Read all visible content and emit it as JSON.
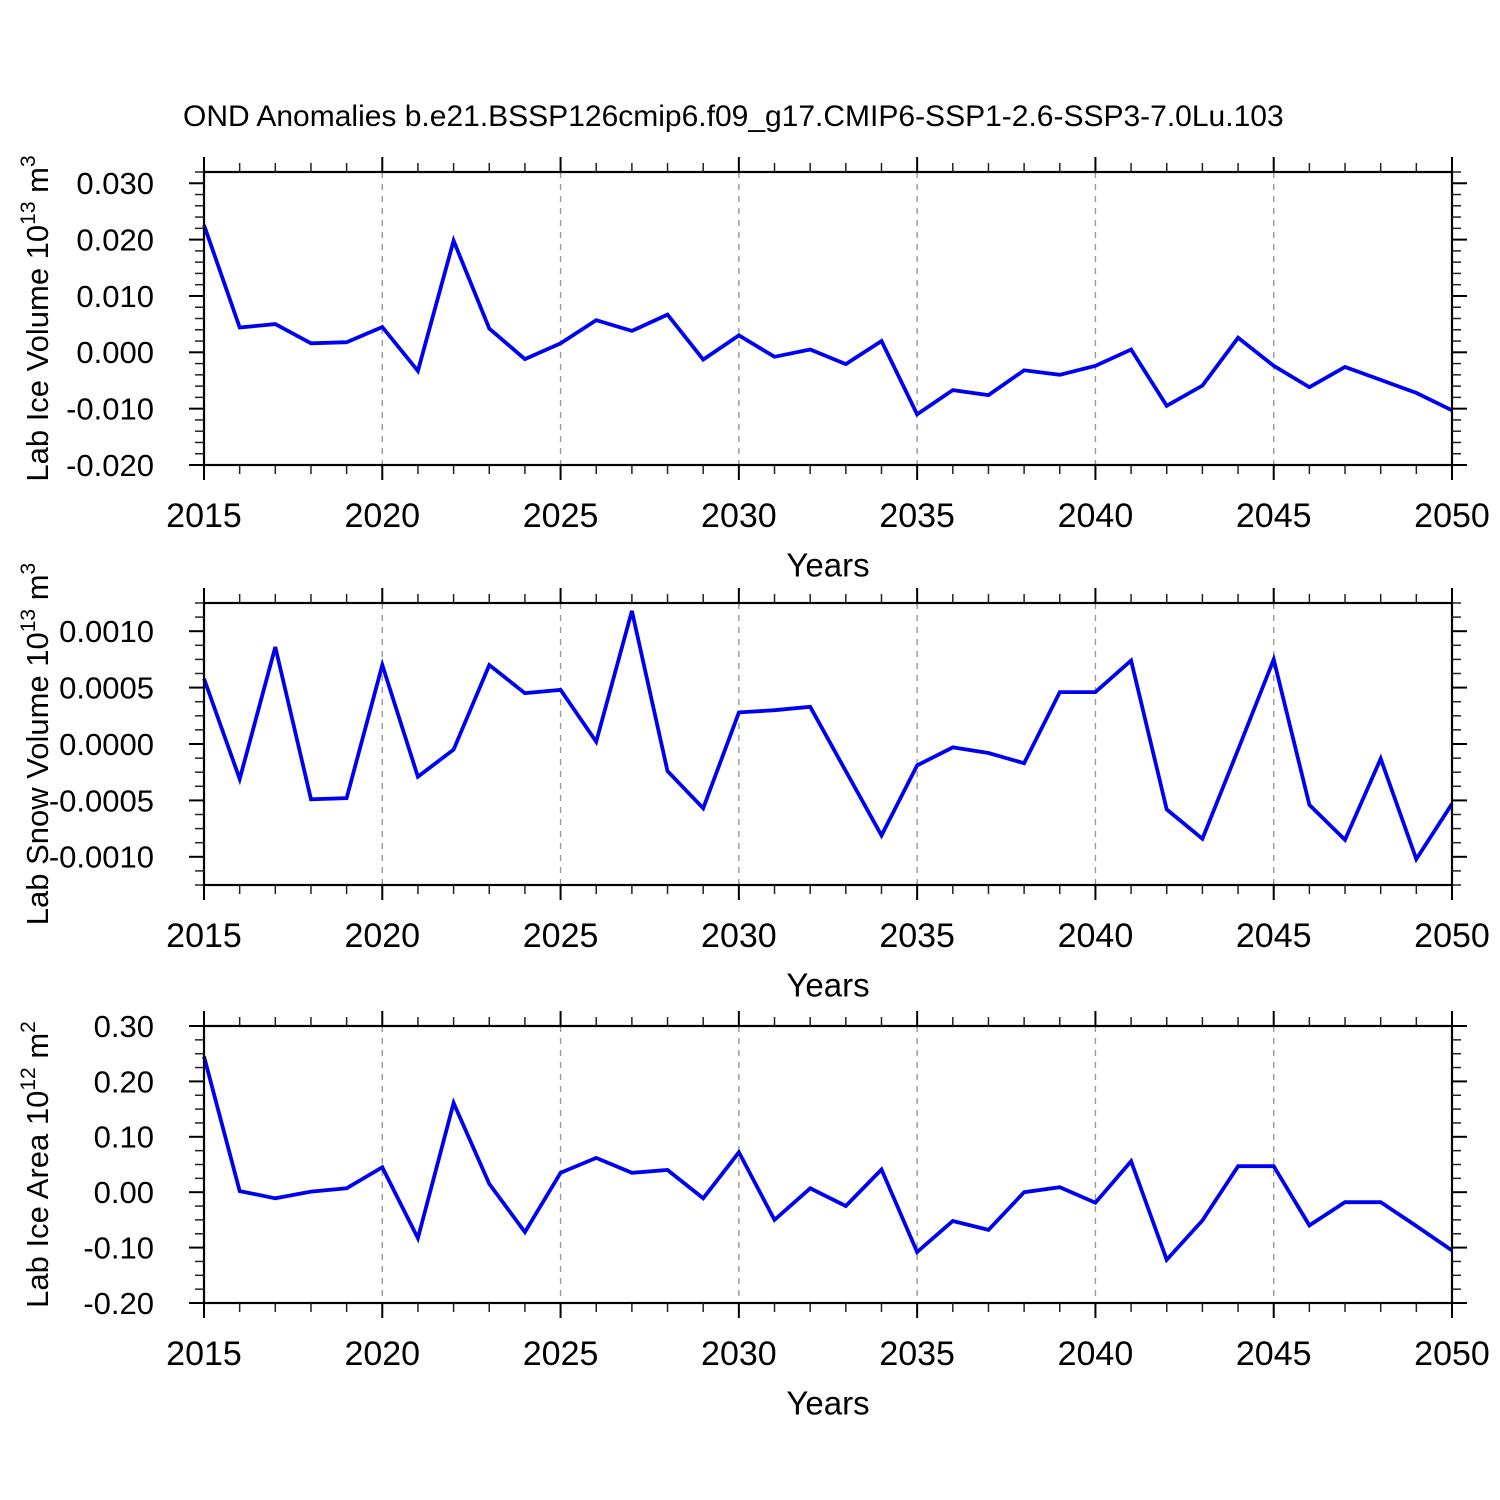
{
  "title": "OND Anomalies b.e21.BSSP126cmip6.f09_g17.CMIP6-SSP1-2.6-SSP3-7.0Lu.103",
  "colors": {
    "line": "#0000F0",
    "axis": "#000000",
    "grid": "#999999"
  },
  "chart_data": [
    {
      "id": "ice-volume",
      "type": "line",
      "ylabel": "Lab Ice Volume 10^13 m^3",
      "ylabel_parts": [
        {
          "text": "Lab Ice Volume 10",
          "sup": false
        },
        {
          "text": "13",
          "sup": true
        },
        {
          "text": " m",
          "sup": false
        },
        {
          "text": "3",
          "sup": true
        }
      ],
      "xlabel": "Years",
      "x_range": [
        2015,
        2050
      ],
      "x_step": 1,
      "ylim": [
        -0.02,
        0.032
      ],
      "y_minor_step": 0.002,
      "x_minor_step": 1,
      "grid_x_values": [
        2020,
        2025,
        2030,
        2035,
        2040,
        2045
      ],
      "y_ticks": [
        {
          "label": "0.030",
          "value": 0.03
        },
        {
          "label": "0.020",
          "value": 0.02
        },
        {
          "label": "0.010",
          "value": 0.01
        },
        {
          "label": "0.000",
          "value": 0.0
        },
        {
          "label": "-0.010",
          "value": -0.01
        },
        {
          "label": "-0.020",
          "value": -0.02
        }
      ],
      "x_ticks": [
        {
          "label": "2015",
          "value": 2015
        },
        {
          "label": "2020",
          "value": 2020
        },
        {
          "label": "2025",
          "value": 2025
        },
        {
          "label": "2030",
          "value": 2030
        },
        {
          "label": "2035",
          "value": 2035
        },
        {
          "label": "2040",
          "value": 2040
        },
        {
          "label": "2045",
          "value": 2045
        },
        {
          "label": "2050",
          "value": 2050
        }
      ],
      "values": [
        0.0226,
        0.0044,
        0.005,
        0.0016,
        0.0018,
        0.0045,
        -0.0033,
        0.0198,
        0.0042,
        -0.0012,
        0.0016,
        0.0057,
        0.0038,
        0.0067,
        -0.0013,
        0.003,
        -0.0008,
        0.0005,
        -0.0021,
        0.002,
        -0.011,
        -0.0067,
        -0.0076,
        -0.0032,
        -0.004,
        -0.0024,
        0.0005,
        -0.0095,
        -0.0059,
        0.0026,
        -0.0024,
        -0.0062,
        -0.0026,
        -0.0049,
        -0.0072,
        -0.0103
      ]
    },
    {
      "id": "snow-volume",
      "type": "line",
      "ylabel": "Lab Snow Volume 10^13 m^3",
      "ylabel_parts": [
        {
          "text": "Lab Snow Volume 10",
          "sup": false
        },
        {
          "text": "13",
          "sup": true
        },
        {
          "text": " m",
          "sup": false
        },
        {
          "text": "3",
          "sup": true
        }
      ],
      "xlabel": "Years",
      "x_range": [
        2015,
        2050
      ],
      "x_step": 1,
      "ylim": [
        -0.00125,
        0.00125
      ],
      "y_minor_step": 0.000125,
      "x_minor_step": 1,
      "grid_x_values": [
        2020,
        2025,
        2030,
        2035,
        2040,
        2045
      ],
      "y_ticks": [
        {
          "label": "0.0010",
          "value": 0.001
        },
        {
          "label": "0.0005",
          "value": 0.0005
        },
        {
          "label": "0.0000",
          "value": 0.0
        },
        {
          "label": "-0.0005",
          "value": -0.0005
        },
        {
          "label": "-0.0010",
          "value": -0.001
        }
      ],
      "x_ticks": [
        {
          "label": "2015",
          "value": 2015
        },
        {
          "label": "2020",
          "value": 2020
        },
        {
          "label": "2025",
          "value": 2025
        },
        {
          "label": "2030",
          "value": 2030
        },
        {
          "label": "2035",
          "value": 2035
        },
        {
          "label": "2040",
          "value": 2040
        },
        {
          "label": "2045",
          "value": 2045
        },
        {
          "label": "2050",
          "value": 2050
        }
      ],
      "values": [
        0.00058,
        -0.00031,
        0.00086,
        -0.00049,
        -0.00048,
        0.0007,
        -0.00029,
        -5e-05,
        0.0007,
        0.00045,
        0.00048,
        2e-05,
        0.00118,
        -0.00024,
        -0.00057,
        0.00028,
        0.0003,
        0.00033,
        -0.00024,
        -0.00081,
        -0.00019,
        -3e-05,
        -8e-05,
        -0.00017,
        0.00046,
        0.00046,
        0.00074,
        -0.00058,
        -0.00084,
        -5e-05,
        0.00075,
        -0.00054,
        -0.00085,
        -0.00013,
        -0.00102,
        -0.00053
      ]
    },
    {
      "id": "ice-area",
      "type": "line",
      "ylabel": "Lab Ice Area 10^12 m^2",
      "ylabel_parts": [
        {
          "text": "Lab Ice Area 10",
          "sup": false
        },
        {
          "text": "12",
          "sup": true
        },
        {
          "text": " m",
          "sup": false
        },
        {
          "text": "2",
          "sup": true
        }
      ],
      "xlabel": "Years",
      "x_range": [
        2015,
        2050
      ],
      "x_step": 1,
      "ylim": [
        -0.2,
        0.3
      ],
      "y_minor_step": 0.025,
      "x_minor_step": 1,
      "grid_x_values": [
        2020,
        2025,
        2030,
        2035,
        2040,
        2045
      ],
      "y_ticks": [
        {
          "label": "0.30",
          "value": 0.3
        },
        {
          "label": "0.20",
          "value": 0.2
        },
        {
          "label": "0.10",
          "value": 0.1
        },
        {
          "label": "0.00",
          "value": 0.0
        },
        {
          "label": "-0.10",
          "value": -0.1
        },
        {
          "label": "-0.20",
          "value": -0.2
        }
      ],
      "x_ticks": [
        {
          "label": "2015",
          "value": 2015
        },
        {
          "label": "2020",
          "value": 2020
        },
        {
          "label": "2025",
          "value": 2025
        },
        {
          "label": "2030",
          "value": 2030
        },
        {
          "label": "2035",
          "value": 2035
        },
        {
          "label": "2040",
          "value": 2040
        },
        {
          "label": "2045",
          "value": 2045
        },
        {
          "label": "2050",
          "value": 2050
        }
      ],
      "values": [
        0.245,
        0.002,
        -0.011,
        0.001,
        0.007,
        0.045,
        -0.083,
        0.161,
        0.015,
        -0.072,
        0.035,
        0.062,
        0.035,
        0.04,
        -0.011,
        0.072,
        -0.05,
        0.007,
        -0.025,
        0.041,
        -0.108,
        -0.052,
        -0.068,
        0.0,
        0.009,
        -0.019,
        0.056,
        -0.122,
        -0.051,
        0.047,
        0.047,
        -0.06,
        -0.018,
        -0.018,
        -0.061,
        -0.105
      ]
    }
  ]
}
